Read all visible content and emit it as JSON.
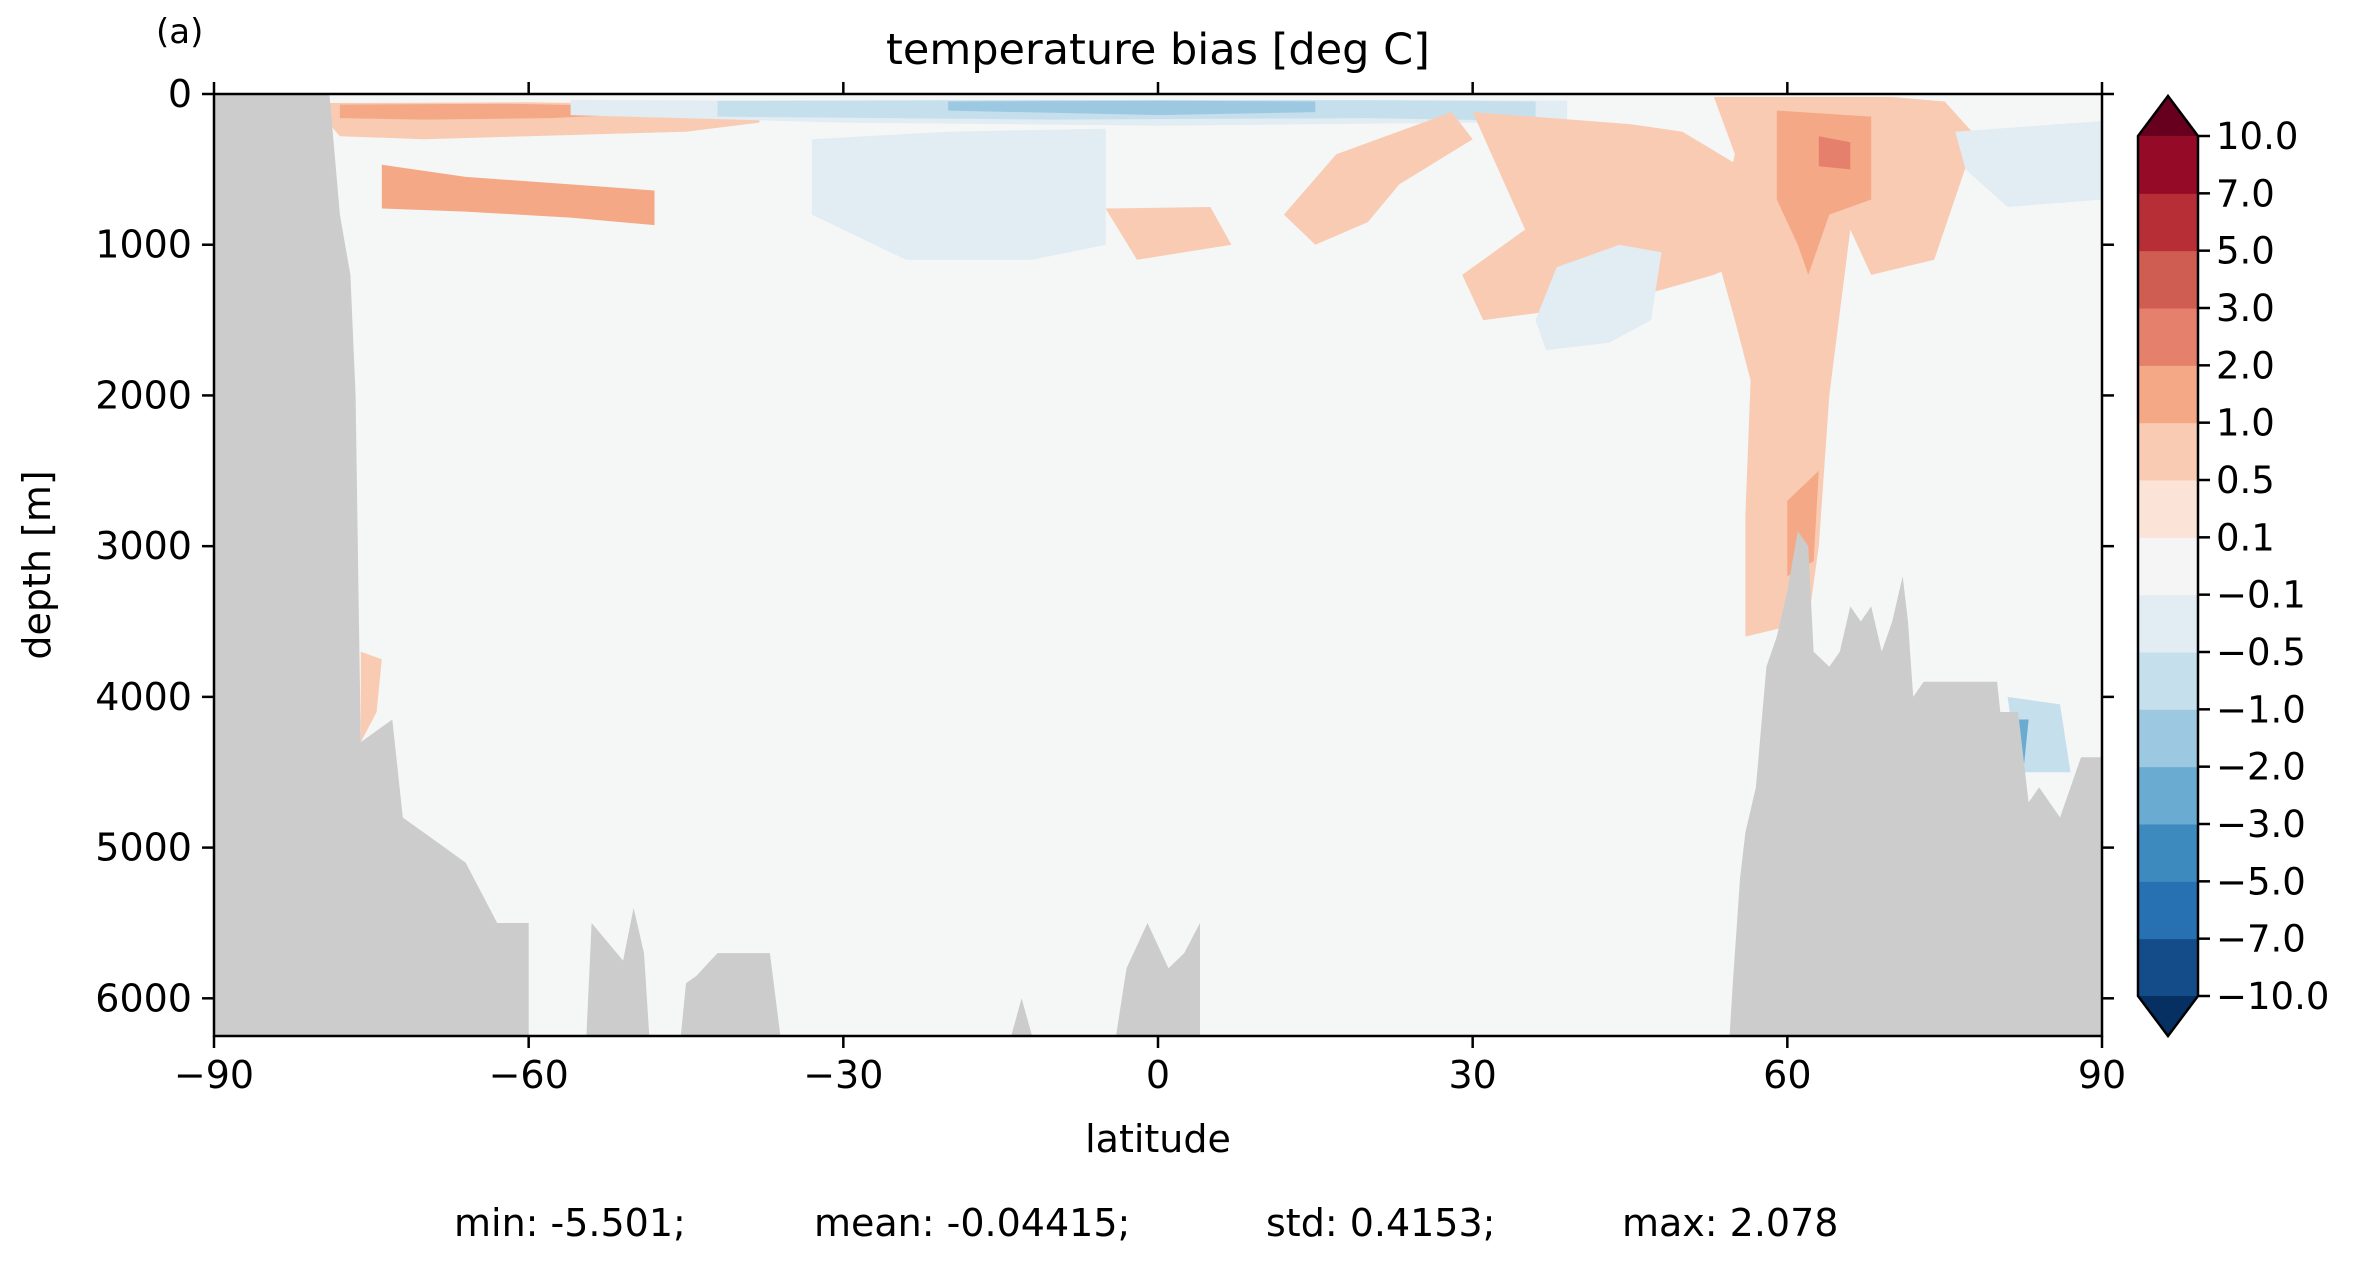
{
  "panel_label": "(a)",
  "stats": {
    "min": "min: -5.501;",
    "mean": "mean: -0.04415;",
    "std": "std: 0.4153;",
    "max": "max: 2.078"
  },
  "chart_data": {
    "type": "heatmap",
    "title": "temperature bias [deg C]",
    "xlabel": "latitude",
    "ylabel": "depth [m]",
    "xlim": [
      -90,
      90
    ],
    "ylim": [
      6250,
      0
    ],
    "y_inverted": true,
    "x_ticks": [
      -90,
      -60,
      -30,
      0,
      30,
      60,
      90
    ],
    "x_tick_labels": [
      "−90",
      "−60",
      "−30",
      "0",
      "30",
      "60",
      "90"
    ],
    "y_ticks": [
      0,
      1000,
      2000,
      3000,
      4000,
      5000,
      6000
    ],
    "y_tick_labels": [
      "0",
      "1000",
      "2000",
      "3000",
      "4000",
      "5000",
      "6000"
    ],
    "colorbar": {
      "levels": [
        -10.0,
        -7.0,
        -5.0,
        -3.0,
        -2.0,
        -1.0,
        -0.5,
        -0.1,
        0.1,
        0.5,
        1.0,
        2.0,
        3.0,
        5.0,
        7.0,
        10.0
      ],
      "tick_labels": [
        "−10.0",
        "−7.0",
        "−5.0",
        "−3.0",
        "−2.0",
        "−1.0",
        "−0.5",
        "−0.1",
        "0.1",
        "0.5",
        "1.0",
        "2.0",
        "3.0",
        "5.0",
        "7.0",
        "10.0"
      ],
      "colors": [
        "#053061",
        "#134c88",
        "#2770b2",
        "#3d8abf",
        "#6aabd1",
        "#9cc9e1",
        "#c6dfed",
        "#e1ecf3",
        "#f5f5f5",
        "#fbe4d7",
        "#f9cbb3",
        "#f4a886",
        "#e4806c",
        "#d05d51",
        "#b72e37",
        "#950b27",
        "#67001f"
      ],
      "extend": "both"
    },
    "land_color": "#cccccc",
    "background_value_color": "#f5f6f6",
    "regions": [
      {
        "value": 0.5,
        "coords": [
          [
            -79,
            60
          ],
          [
            -60,
            55
          ],
          [
            -45,
            70
          ],
          [
            -38,
            85
          ],
          [
            -38,
            190
          ],
          [
            -45,
            250
          ],
          [
            -60,
            280
          ],
          [
            -70,
            300
          ],
          [
            -78,
            280
          ],
          [
            -79,
            200
          ]
        ]
      },
      {
        "value": 1.0,
        "coords": [
          [
            -78,
            70
          ],
          [
            -62,
            65
          ],
          [
            -50,
            80
          ],
          [
            -45,
            120
          ],
          [
            -58,
            160
          ],
          [
            -70,
            170
          ],
          [
            -78,
            160
          ]
        ]
      },
      {
        "value": 1.0,
        "coords": [
          [
            -74,
            470
          ],
          [
            -66,
            550
          ],
          [
            -56,
            600
          ],
          [
            -48,
            640
          ],
          [
            -48,
            870
          ],
          [
            -56,
            820
          ],
          [
            -66,
            780
          ],
          [
            -74,
            760
          ]
        ]
      },
      {
        "value": -0.5,
        "coords": [
          [
            -56,
            40
          ],
          [
            -30,
            45
          ],
          [
            0,
            40
          ],
          [
            30,
            40
          ],
          [
            39,
            45
          ],
          [
            39,
            190
          ],
          [
            30,
            190
          ],
          [
            0,
            210
          ],
          [
            -30,
            190
          ],
          [
            -56,
            140
          ]
        ]
      },
      {
        "value": -1.0,
        "coords": [
          [
            -42,
            45
          ],
          [
            -10,
            40
          ],
          [
            20,
            42
          ],
          [
            36,
            50
          ],
          [
            36,
            180
          ],
          [
            20,
            160
          ],
          [
            -10,
            170
          ],
          [
            -42,
            150
          ]
        ]
      },
      {
        "value": -2.0,
        "coords": [
          [
            -20,
            50
          ],
          [
            0,
            45
          ],
          [
            15,
            50
          ],
          [
            15,
            120
          ],
          [
            0,
            140
          ],
          [
            -20,
            110
          ]
        ]
      },
      {
        "value": 0.5,
        "coords": [
          [
            -5,
            760
          ],
          [
            5,
            750
          ],
          [
            7,
            1000
          ],
          [
            -2,
            1100
          ]
        ]
      },
      {
        "value": -0.5,
        "coords": [
          [
            -33,
            300
          ],
          [
            -20,
            250
          ],
          [
            -5,
            230
          ],
          [
            -5,
            1000
          ],
          [
            -12,
            1100
          ],
          [
            -24,
            1100
          ],
          [
            -33,
            800
          ]
        ]
      },
      {
        "value": 0.5,
        "coords": [
          [
            28,
            120
          ],
          [
            30,
            300
          ],
          [
            23,
            600
          ],
          [
            20,
            850
          ],
          [
            15,
            1000
          ],
          [
            12,
            800
          ],
          [
            17,
            400
          ]
        ]
      },
      {
        "value": 0.5,
        "coords": [
          [
            30,
            120
          ],
          [
            45,
            200
          ],
          [
            50,
            250
          ],
          [
            55,
            460
          ],
          [
            63,
            600
          ],
          [
            58,
            1050
          ],
          [
            53,
            1200
          ],
          [
            48,
            1300
          ],
          [
            42,
            1400
          ],
          [
            31,
            1500
          ],
          [
            29,
            1200
          ],
          [
            35,
            900
          ]
        ]
      },
      {
        "value": -0.5,
        "coords": [
          [
            38,
            1150
          ],
          [
            44,
            1000
          ],
          [
            48,
            1050
          ],
          [
            47,
            1500
          ],
          [
            43,
            1650
          ],
          [
            37,
            1700
          ],
          [
            36,
            1500
          ]
        ]
      },
      {
        "value": 0.5,
        "coords": [
          [
            53,
            20
          ],
          [
            70,
            20
          ],
          [
            75,
            50
          ],
          [
            78,
            280
          ],
          [
            74,
            1100
          ],
          [
            68,
            1200
          ],
          [
            66,
            900
          ],
          [
            64,
            2000
          ],
          [
            63,
            3000
          ],
          [
            62,
            3500
          ],
          [
            56,
            3600
          ],
          [
            56,
            2800
          ],
          [
            56.5,
            1900
          ],
          [
            55,
            1500
          ],
          [
            53,
            1000
          ],
          [
            55,
            400
          ]
        ]
      },
      {
        "value": 1.0,
        "coords": [
          [
            59,
            110
          ],
          [
            68,
            150
          ],
          [
            68,
            700
          ],
          [
            64,
            800
          ],
          [
            62,
            1200
          ],
          [
            61,
            1000
          ],
          [
            59,
            700
          ]
        ]
      },
      {
        "value": 2.0,
        "coords": [
          [
            63,
            280
          ],
          [
            66,
            320
          ],
          [
            66,
            500
          ],
          [
            63,
            480
          ]
        ]
      },
      {
        "value": 1.0,
        "coords": [
          [
            60,
            2700
          ],
          [
            63,
            2500
          ],
          [
            62.5,
            3100
          ],
          [
            60,
            3200
          ]
        ]
      },
      {
        "value": -0.5,
        "coords": [
          [
            76,
            250
          ],
          [
            90,
            180
          ],
          [
            90,
            700
          ],
          [
            81,
            750
          ],
          [
            77,
            500
          ]
        ]
      },
      {
        "value": -1.0,
        "coords": [
          [
            81,
            4000
          ],
          [
            86,
            4050
          ],
          [
            87,
            4500
          ],
          [
            82,
            4500
          ]
        ]
      },
      {
        "value": -3.0,
        "coords": [
          [
            81.5,
            4150
          ],
          [
            83,
            4150
          ],
          [
            82.5,
            4500
          ],
          [
            81,
            4500
          ]
        ]
      },
      {
        "value": 0.5,
        "coords": [
          [
            -76,
            3700
          ],
          [
            -74,
            3750
          ],
          [
            -74.5,
            4100
          ],
          [
            -76,
            4300
          ]
        ]
      }
    ],
    "land": [
      {
        "coords": [
          [
            -90,
            0
          ],
          [
            -79,
            0
          ],
          [
            -78,
            800
          ],
          [
            -77,
            1200
          ],
          [
            -76.5,
            2000
          ],
          [
            -76.2,
            3400
          ],
          [
            -76,
            4300
          ],
          [
            -73,
            4150
          ],
          [
            -72,
            4800
          ],
          [
            -68,
            5000
          ],
          [
            -66,
            5100
          ],
          [
            -63,
            5500
          ],
          [
            -60,
            5500
          ],
          [
            -60,
            6250
          ],
          [
            -90,
            6250
          ]
        ]
      },
      {
        "coords": [
          [
            -54.5,
            6250
          ],
          [
            -54,
            5500
          ],
          [
            -51,
            5750
          ],
          [
            -50,
            5400
          ],
          [
            -49,
            5700
          ],
          [
            -48.5,
            6250
          ]
        ]
      },
      {
        "coords": [
          [
            -45.5,
            6250
          ],
          [
            -45,
            5900
          ],
          [
            -44,
            5850
          ],
          [
            -42,
            5700
          ],
          [
            -37,
            5700
          ],
          [
            -36,
            6250
          ]
        ]
      },
      {
        "coords": [
          [
            -4,
            6250
          ],
          [
            -3,
            5800
          ],
          [
            -1,
            5500
          ],
          [
            1,
            5800
          ],
          [
            2.5,
            5700
          ],
          [
            4,
            5500
          ],
          [
            4,
            6250
          ]
        ]
      },
      {
        "coords": [
          [
            -14,
            6250
          ],
          [
            -13,
            6000
          ],
          [
            -12,
            6250
          ]
        ]
      },
      {
        "coords": [
          [
            54.5,
            6250
          ],
          [
            54.8,
            5900
          ],
          [
            55.5,
            5200
          ],
          [
            56,
            4900
          ],
          [
            57,
            4600
          ],
          [
            58,
            3800
          ],
          [
            59,
            3600
          ],
          [
            60,
            3300
          ],
          [
            61,
            2900
          ],
          [
            62,
            3000
          ],
          [
            62.5,
            3700
          ],
          [
            64,
            3800
          ],
          [
            65,
            3700
          ],
          [
            66,
            3400
          ],
          [
            67,
            3500
          ],
          [
            68,
            3400
          ],
          [
            69,
            3700
          ],
          [
            70,
            3500
          ],
          [
            71,
            3200
          ],
          [
            71.5,
            3500
          ],
          [
            72,
            4000
          ],
          [
            73,
            3900
          ],
          [
            75,
            3900
          ],
          [
            77,
            3900
          ],
          [
            80,
            3900
          ],
          [
            80.3,
            4100
          ],
          [
            82,
            4100
          ],
          [
            83,
            4700
          ],
          [
            84,
            4600
          ],
          [
            86,
            4800
          ],
          [
            88,
            4400
          ],
          [
            90,
            4400
          ],
          [
            90,
            6250
          ]
        ]
      }
    ]
  }
}
